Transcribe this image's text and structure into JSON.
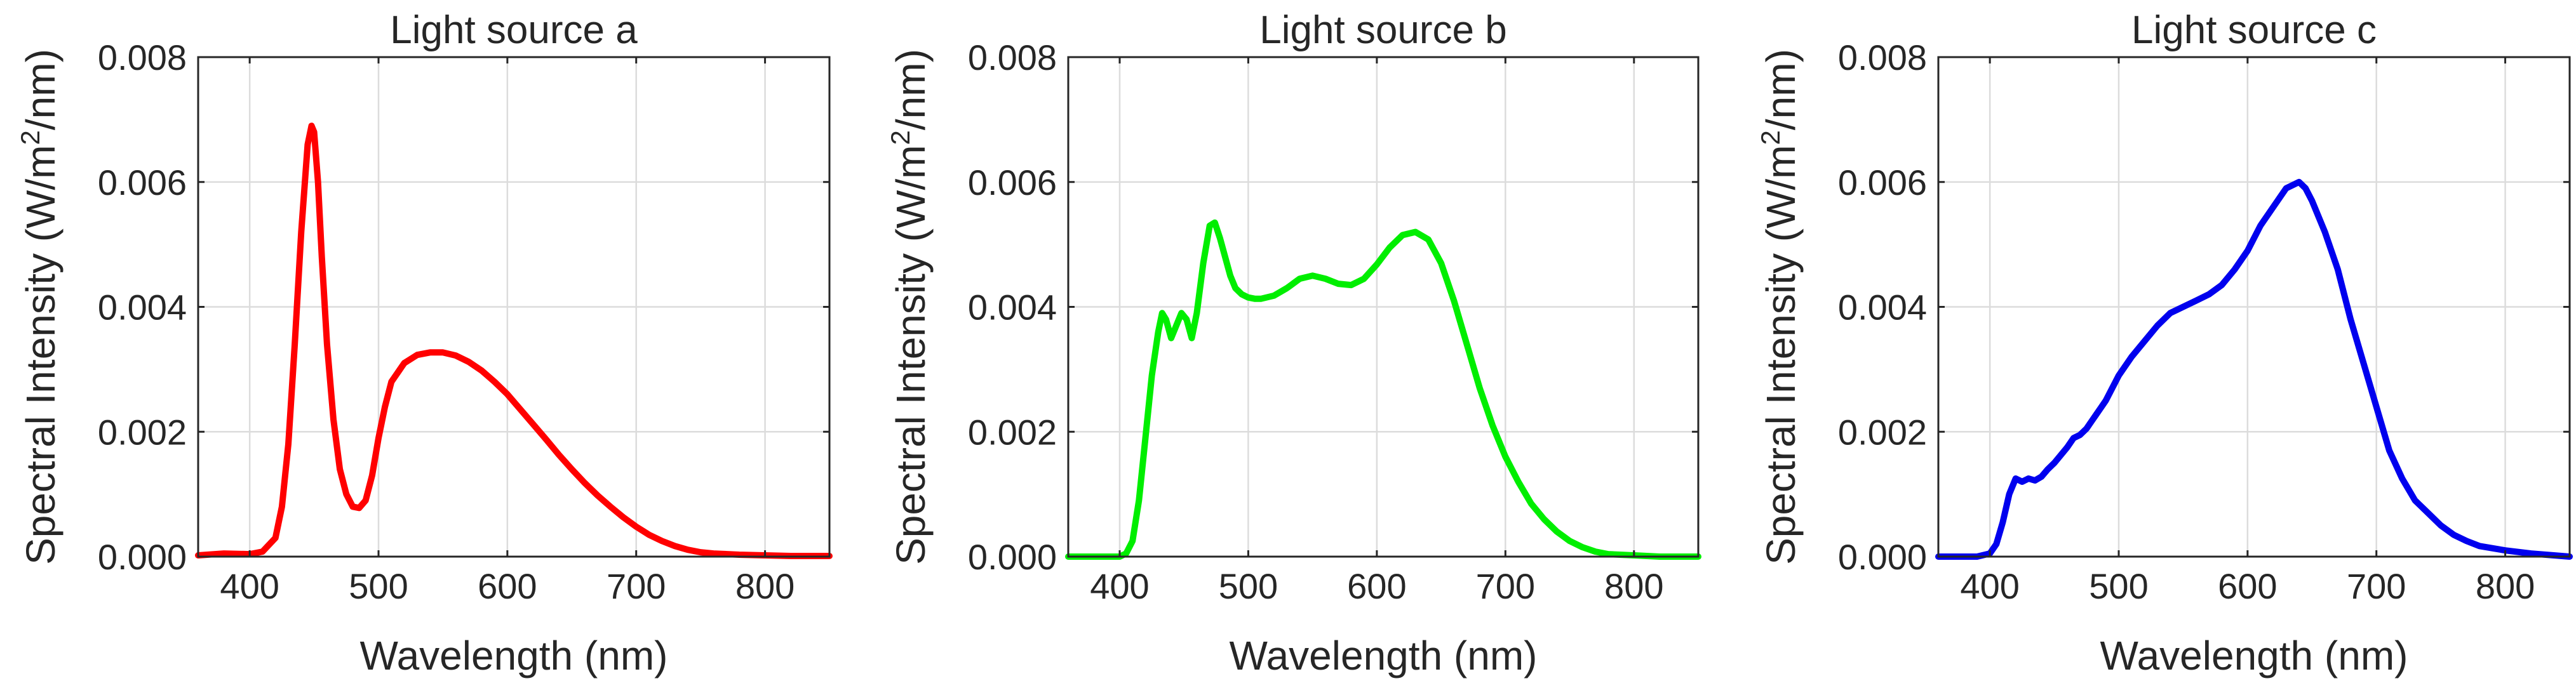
{
  "chart_data": [
    {
      "type": "line",
      "title": "Light source a",
      "xlabel": "Wavelength (nm)",
      "ylabel_main": "Spectral Intensity (W/m",
      "ylabel_sup": "2",
      "ylabel_end": "/nm)",
      "xlim": [
        360,
        850
      ],
      "ylim": [
        0,
        0.008
      ],
      "xticks": [
        400,
        500,
        600,
        700,
        800
      ],
      "xtick_labels": [
        "400",
        "500",
        "600",
        "700",
        "800"
      ],
      "yticks": [
        0,
        0.002,
        0.004,
        0.006,
        0.008
      ],
      "ytick_labels": [
        "0.000",
        "0.002",
        "0.004",
        "0.006",
        "0.008"
      ],
      "grid": true,
      "color": "#ff0000",
      "series": [
        {
          "name": "Light source a",
          "x": [
            360,
            380,
            400,
            410,
            420,
            425,
            430,
            435,
            440,
            445,
            448,
            450,
            453,
            456,
            460,
            465,
            470,
            475,
            480,
            485,
            490,
            495,
            500,
            505,
            510,
            520,
            530,
            540,
            550,
            560,
            570,
            580,
            590,
            600,
            610,
            620,
            630,
            640,
            650,
            660,
            670,
            680,
            690,
            700,
            710,
            720,
            730,
            740,
            750,
            760,
            780,
            800,
            820,
            850
          ],
          "y": [
            2e-05,
            5e-05,
            4e-05,
            8e-05,
            0.0003,
            0.0008,
            0.0018,
            0.0034,
            0.0052,
            0.0066,
            0.0069,
            0.0068,
            0.006,
            0.0048,
            0.0034,
            0.0022,
            0.0014,
            0.001,
            0.0008,
            0.00078,
            0.0009,
            0.0013,
            0.0019,
            0.0024,
            0.0028,
            0.0031,
            0.00323,
            0.00327,
            0.00327,
            0.00322,
            0.00312,
            0.00298,
            0.0028,
            0.0026,
            0.00236,
            0.00212,
            0.00188,
            0.00163,
            0.0014,
            0.00118,
            0.00098,
            0.0008,
            0.00063,
            0.00048,
            0.00035,
            0.00025,
            0.00017,
            0.00011,
            7e-05,
            5e-05,
            3e-05,
            2e-05,
            1e-05,
            1e-05
          ]
        }
      ]
    },
    {
      "type": "line",
      "title": "Light source b",
      "xlabel": "Wavelength (nm)",
      "ylabel_main": "Spectral Intensity (W/m",
      "ylabel_sup": "2",
      "ylabel_end": "/nm)",
      "xlim": [
        360,
        850
      ],
      "ylim": [
        0,
        0.008
      ],
      "xticks": [
        400,
        500,
        600,
        700,
        800
      ],
      "xtick_labels": [
        "400",
        "500",
        "600",
        "700",
        "800"
      ],
      "yticks": [
        0,
        0.002,
        0.004,
        0.006,
        0.008
      ],
      "ytick_labels": [
        "0.000",
        "0.002",
        "0.004",
        "0.006",
        "0.008"
      ],
      "grid": true,
      "color": "#00ee00",
      "series": [
        {
          "name": "Light source b",
          "x": [
            360,
            400,
            405,
            410,
            415,
            420,
            425,
            430,
            433,
            436,
            440,
            444,
            448,
            452,
            456,
            460,
            465,
            470,
            474,
            478,
            482,
            486,
            490,
            495,
            500,
            505,
            510,
            520,
            530,
            540,
            550,
            560,
            570,
            580,
            590,
            600,
            610,
            620,
            630,
            640,
            650,
            660,
            670,
            680,
            690,
            700,
            710,
            720,
            730,
            740,
            750,
            760,
            770,
            780,
            800,
            820,
            850
          ],
          "y": [
            0.0,
            0.0,
            5e-05,
            0.00025,
            0.0009,
            0.0019,
            0.0029,
            0.0036,
            0.0039,
            0.0038,
            0.0035,
            0.0037,
            0.0039,
            0.0038,
            0.0035,
            0.0039,
            0.0047,
            0.0053,
            0.00535,
            0.0051,
            0.0048,
            0.0045,
            0.0043,
            0.0042,
            0.00415,
            0.00413,
            0.00413,
            0.00418,
            0.0043,
            0.00445,
            0.0045,
            0.00445,
            0.00437,
            0.00435,
            0.00445,
            0.00468,
            0.00495,
            0.00515,
            0.0052,
            0.00508,
            0.0047,
            0.0041,
            0.0034,
            0.0027,
            0.0021,
            0.0016,
            0.0012,
            0.00085,
            0.0006,
            0.0004,
            0.00025,
            0.00015,
            8e-05,
            4e-05,
            2e-05,
            0.0,
            0.0
          ]
        }
      ]
    },
    {
      "type": "line",
      "title": "Light source c",
      "xlabel": "Wavelength (nm)",
      "ylabel_main": "Spectral Intensity (W/m",
      "ylabel_sup": "2",
      "ylabel_end": "/nm)",
      "xlim": [
        360,
        850
      ],
      "ylim": [
        0,
        0.008
      ],
      "xticks": [
        400,
        500,
        600,
        700,
        800
      ],
      "xtick_labels": [
        "400",
        "500",
        "600",
        "700",
        "800"
      ],
      "yticks": [
        0,
        0.002,
        0.004,
        0.006,
        0.008
      ],
      "ytick_labels": [
        "0.000",
        "0.002",
        "0.004",
        "0.006",
        "0.008"
      ],
      "grid": true,
      "color": "#0000ee",
      "series": [
        {
          "name": "Light source c",
          "x": [
            360,
            390,
            400,
            405,
            410,
            415,
            420,
            425,
            430,
            435,
            440,
            445,
            450,
            460,
            465,
            470,
            475,
            480,
            490,
            500,
            510,
            520,
            530,
            540,
            550,
            560,
            570,
            580,
            590,
            600,
            610,
            620,
            630,
            640,
            645,
            650,
            660,
            670,
            680,
            690,
            700,
            710,
            720,
            730,
            740,
            750,
            760,
            770,
            780,
            800,
            820,
            850
          ],
          "y": [
            0.0,
            0.0,
            5e-05,
            0.0002,
            0.00055,
            0.001,
            0.00125,
            0.0012,
            0.00125,
            0.00122,
            0.00128,
            0.0014,
            0.0015,
            0.00175,
            0.0019,
            0.00195,
            0.00205,
            0.0022,
            0.0025,
            0.0029,
            0.0032,
            0.00345,
            0.0037,
            0.0039,
            0.004,
            0.0041,
            0.0042,
            0.00435,
            0.0046,
            0.0049,
            0.0053,
            0.0056,
            0.0059,
            0.006,
            0.0059,
            0.0057,
            0.0052,
            0.0046,
            0.0038,
            0.0031,
            0.0024,
            0.0017,
            0.00125,
            0.0009,
            0.0007,
            0.0005,
            0.00035,
            0.00025,
            0.00017,
            0.0001,
            5e-05,
            0.0
          ]
        }
      ]
    }
  ]
}
